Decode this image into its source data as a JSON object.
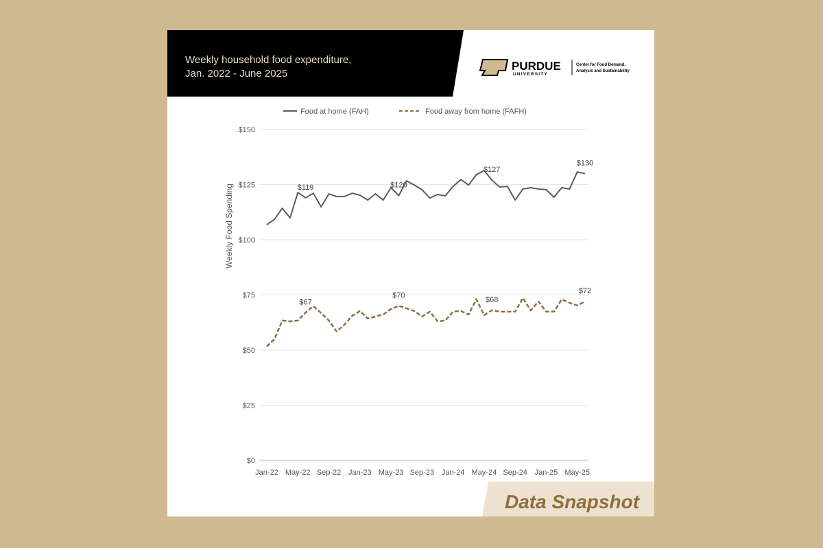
{
  "chart_data": {
    "type": "line",
    "title": [
      "Weekly household food expenditure,",
      "Jan. 2022 - June 2025"
    ],
    "y_label": "Weekly Food Spending",
    "categories": [
      "Jan-22",
      null,
      null,
      null,
      "May-22",
      null,
      null,
      null,
      "Sep-22",
      null,
      null,
      null,
      "Jan-23",
      null,
      null,
      null,
      "May-23",
      null,
      null,
      null,
      "Sep-23",
      null,
      null,
      null,
      "Jan-24",
      null,
      null,
      null,
      "May-24",
      null,
      null,
      null,
      "Sep-24",
      null,
      null,
      null,
      "Jan-25",
      null,
      null,
      null,
      "May-25",
      null
    ],
    "series": [
      {
        "name": "Food at home (FAH)",
        "color": "#5b5b5b",
        "dash": false,
        "values": [
          106.8,
          109.3,
          114.3,
          109.9,
          121.4,
          119,
          121.1,
          114.9,
          120.8,
          119.6,
          119.6,
          121.1,
          120.2,
          118.0,
          120.8,
          118.0,
          123.6,
          120,
          126.7,
          124.8,
          122.7,
          118.9,
          120.5,
          119.9,
          124.2,
          127.3,
          124.8,
          129.5,
          131.4,
          127,
          123.9,
          124.2,
          118.0,
          123.0,
          123.6,
          123.0,
          122.7,
          119.3,
          123.6,
          123.0,
          130.7,
          130
        ],
        "value_labels": [
          null,
          null,
          null,
          null,
          null,
          "$119",
          null,
          null,
          null,
          null,
          null,
          null,
          null,
          null,
          null,
          null,
          null,
          "$120",
          null,
          null,
          null,
          null,
          null,
          null,
          null,
          null,
          null,
          null,
          null,
          "$127",
          null,
          null,
          null,
          null,
          null,
          null,
          null,
          null,
          null,
          null,
          null,
          "$130"
        ]
      },
      {
        "name": "Food away from home (FAFH)",
        "color": "#8e6f3e",
        "dash": true,
        "values": [
          51.6,
          55.0,
          63.4,
          63.0,
          63.4,
          67,
          69.9,
          66.8,
          63.4,
          58.4,
          61.5,
          65.5,
          67.7,
          64.3,
          65.2,
          66.1,
          68.6,
          70,
          68.9,
          67.7,
          65.2,
          67.4,
          63.0,
          63.4,
          67.4,
          67.7,
          66.1,
          73.0,
          65.8,
          68,
          67.4,
          67.4,
          67.4,
          73.6,
          68.0,
          72.0,
          67.4,
          67.4,
          73.0,
          71.4,
          70.2,
          72
        ],
        "value_labels": [
          null,
          null,
          null,
          null,
          null,
          "$67",
          null,
          null,
          null,
          null,
          null,
          null,
          null,
          null,
          null,
          null,
          null,
          "$70",
          null,
          null,
          null,
          null,
          null,
          null,
          null,
          null,
          null,
          null,
          null,
          "$68",
          null,
          null,
          null,
          null,
          null,
          null,
          null,
          null,
          null,
          null,
          null,
          "$72"
        ]
      }
    ],
    "ylim": [
      0,
      150
    ],
    "yticks": [
      {
        "value": 0,
        "label": "$0"
      },
      {
        "value": 25,
        "label": "$25"
      },
      {
        "value": 50,
        "label": "$50"
      },
      {
        "value": 75,
        "label": "$75"
      },
      {
        "value": 100,
        "label": "$100"
      },
      {
        "value": 125,
        "label": "$125"
      },
      {
        "value": 150,
        "label": "$150"
      }
    ],
    "grid": true,
    "legend": "top"
  },
  "branding": {
    "name": "PURDUE",
    "sub": "UNIVERSITY",
    "center": [
      "Center for Food Demand,",
      "Analysis and Sustainability"
    ]
  },
  "footer": "Data Snapshot"
}
